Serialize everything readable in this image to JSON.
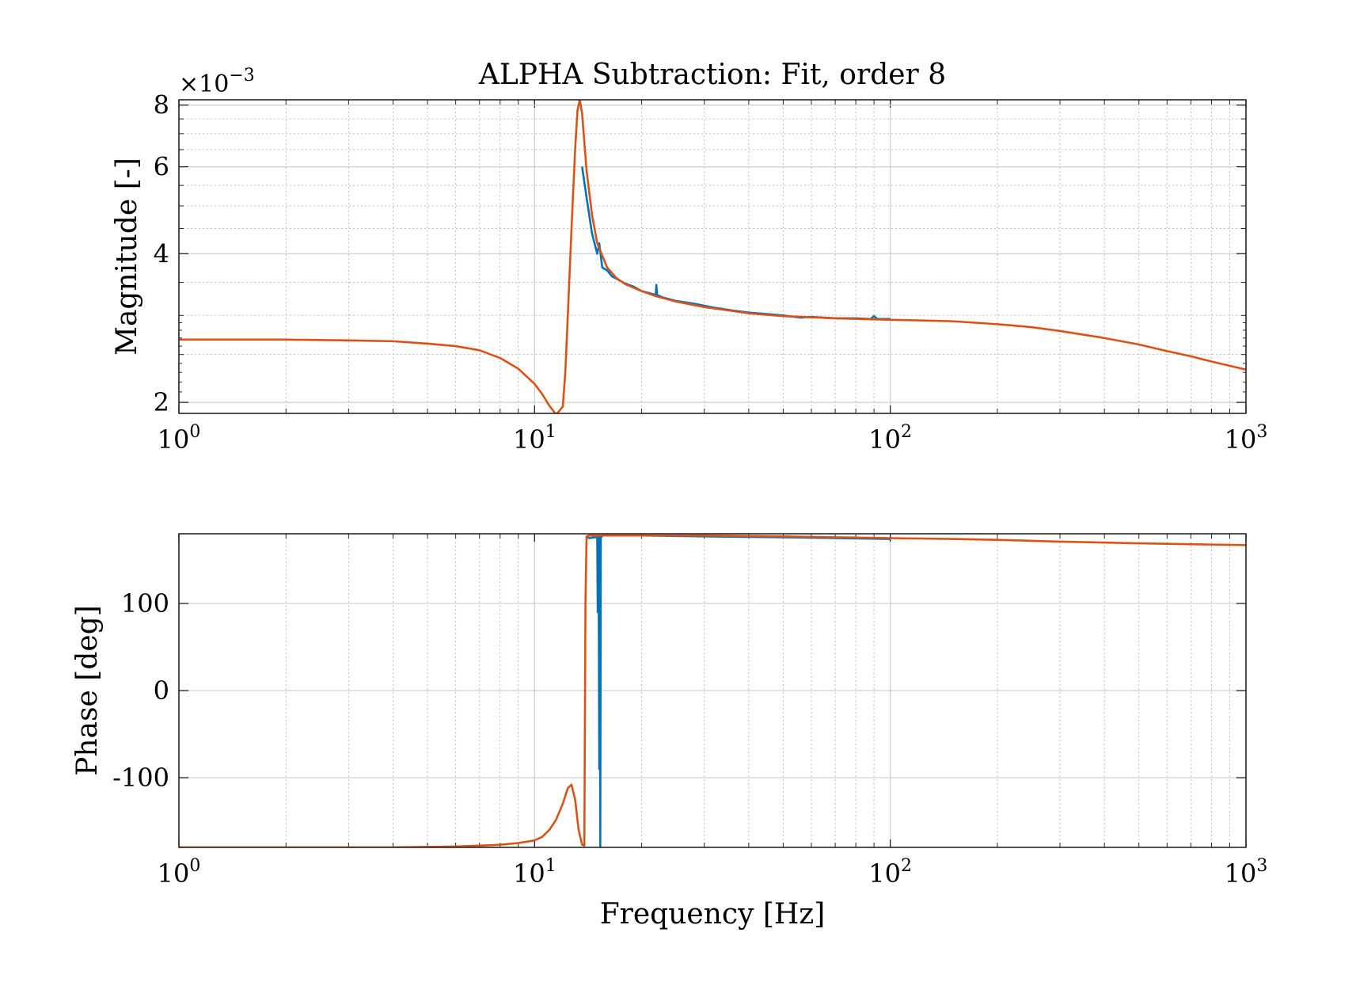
{
  "chart_data": [
    {
      "type": "line",
      "title": "ALPHA Subtraction: Fit, order 8",
      "xlabel": "",
      "ylabel": "Magnitude [-]",
      "y_exponent_label": "×10",
      "y_exponent_sup": "−3",
      "xscale": "log",
      "yscale": "log",
      "xlim": [
        1,
        1000
      ],
      "ylim": [
        0.0019,
        0.0082
      ],
      "x_ticks": [
        1,
        10,
        100,
        1000
      ],
      "x_tick_base": "10",
      "x_tick_exponents": [
        "0",
        "1",
        "2",
        "3"
      ],
      "y_ticks": [
        0.002,
        0.004,
        0.006,
        0.008
      ],
      "y_tick_labels": [
        "2",
        "4",
        "6",
        "8"
      ],
      "grid": true,
      "series": [
        {
          "color": "#0072BD",
          "x": [
            13.6,
            14.0,
            14.5,
            15.0,
            15.2,
            15.5,
            16.0,
            16.5,
            17.0,
            18.0,
            19.0,
            20.0,
            21.0,
            21.9,
            22.0,
            22.1,
            23.0,
            25.0,
            28.0,
            32.0,
            36.0,
            40.0,
            50.0,
            56.0,
            60.0,
            70.0,
            80.0,
            88.0,
            90.0,
            92.0,
            100.0
          ],
          "y": [
            0.006,
            0.0052,
            0.0044,
            0.004,
            0.0042,
            0.00375,
            0.0037,
            0.0036,
            0.00356,
            0.00348,
            0.00343,
            0.00336,
            0.00333,
            0.0033,
            0.00346,
            0.0033,
            0.00326,
            0.00321,
            0.00317,
            0.00311,
            0.00307,
            0.00304,
            0.003,
            0.00297,
            0.00298,
            0.00296,
            0.00296,
            0.00295,
            0.00299,
            0.00295,
            0.00295
          ]
        },
        {
          "color": "#D95319",
          "x": [
            1,
            2,
            3,
            4,
            5,
            6,
            7,
            8,
            9,
            10,
            10.5,
            11,
            11.5,
            12,
            12.2,
            12.4,
            12.7,
            13.0,
            13.2,
            13.4,
            13.6,
            14.0,
            14.5,
            15.0,
            16.0,
            17.0,
            18.0,
            20.0,
            22.0,
            25.0,
            30.0,
            40.0,
            50.0,
            70.0,
            100.0,
            150.0,
            200.0,
            250.0,
            300.0,
            400.0,
            500.0,
            600.0,
            700.0,
            800.0,
            1000.0
          ],
          "y": [
            0.00268,
            0.00268,
            0.00267,
            0.00266,
            0.00263,
            0.0026,
            0.00255,
            0.00246,
            0.00234,
            0.00218,
            0.00208,
            0.00197,
            0.00189,
            0.00196,
            0.0023,
            0.003,
            0.0045,
            0.0065,
            0.0078,
            0.0082,
            0.0077,
            0.0059,
            0.0048,
            0.0042,
            0.00375,
            0.00357,
            0.00347,
            0.00336,
            0.00328,
            0.0032,
            0.00312,
            0.00303,
            0.00299,
            0.00296,
            0.00294,
            0.00292,
            0.00288,
            0.00284,
            0.00279,
            0.0027,
            0.00262,
            0.00254,
            0.00248,
            0.00242,
            0.00233
          ]
        }
      ]
    },
    {
      "type": "line",
      "title": "",
      "xlabel": "Frequency [Hz]",
      "ylabel": "Phase [deg]",
      "xscale": "log",
      "yscale": "linear",
      "xlim": [
        1,
        1000
      ],
      "ylim": [
        -180,
        180
      ],
      "x_ticks": [
        1,
        10,
        100,
        1000
      ],
      "x_tick_base": "10",
      "x_tick_exponents": [
        "0",
        "1",
        "2",
        "3"
      ],
      "y_ticks": [
        -100,
        0,
        100
      ],
      "y_tick_labels": [
        "-100",
        "0",
        "100"
      ],
      "grid": true,
      "series": [
        {
          "color": "#0072BD",
          "x": [
            14.0,
            14.3,
            14.8,
            15.0,
            15.05,
            15.1,
            15.15,
            15.2,
            15.25,
            15.3,
            15.35,
            15.4,
            15.5,
            16.0,
            20.0,
            30.0,
            50.0,
            70.0,
            100.0
          ],
          "y": [
            176,
            175,
            176,
            176,
            90,
            178,
            100,
            -90,
            178,
            -180,
            178,
            176,
            178,
            178,
            178,
            177,
            176,
            175,
            174
          ]
        },
        {
          "color": "#D95319",
          "x": [
            1,
            2,
            3,
            4,
            5,
            6,
            7,
            8,
            9,
            10,
            10.5,
            11,
            11.5,
            12.0,
            12.4,
            12.7,
            13.0,
            13.3,
            13.6,
            13.8,
            13.9,
            14.0,
            14.2,
            14.5,
            15.0,
            16.0,
            18.0,
            20.0,
            30.0,
            50.0,
            70.0,
            100.0,
            150.0,
            200.0,
            300.0,
            500.0,
            700.0,
            1000.0
          ],
          "y": [
            -180,
            -180,
            -180,
            -180,
            -179.5,
            -179,
            -178,
            -177,
            -175,
            -172,
            -168,
            -160,
            -148,
            -130,
            -112,
            -108,
            -125,
            -160,
            -177,
            -178,
            100,
            177,
            178,
            178,
            178,
            178,
            178,
            178,
            178,
            177,
            176,
            175,
            174,
            173,
            171,
            169,
            168,
            167
          ]
        }
      ]
    }
  ]
}
